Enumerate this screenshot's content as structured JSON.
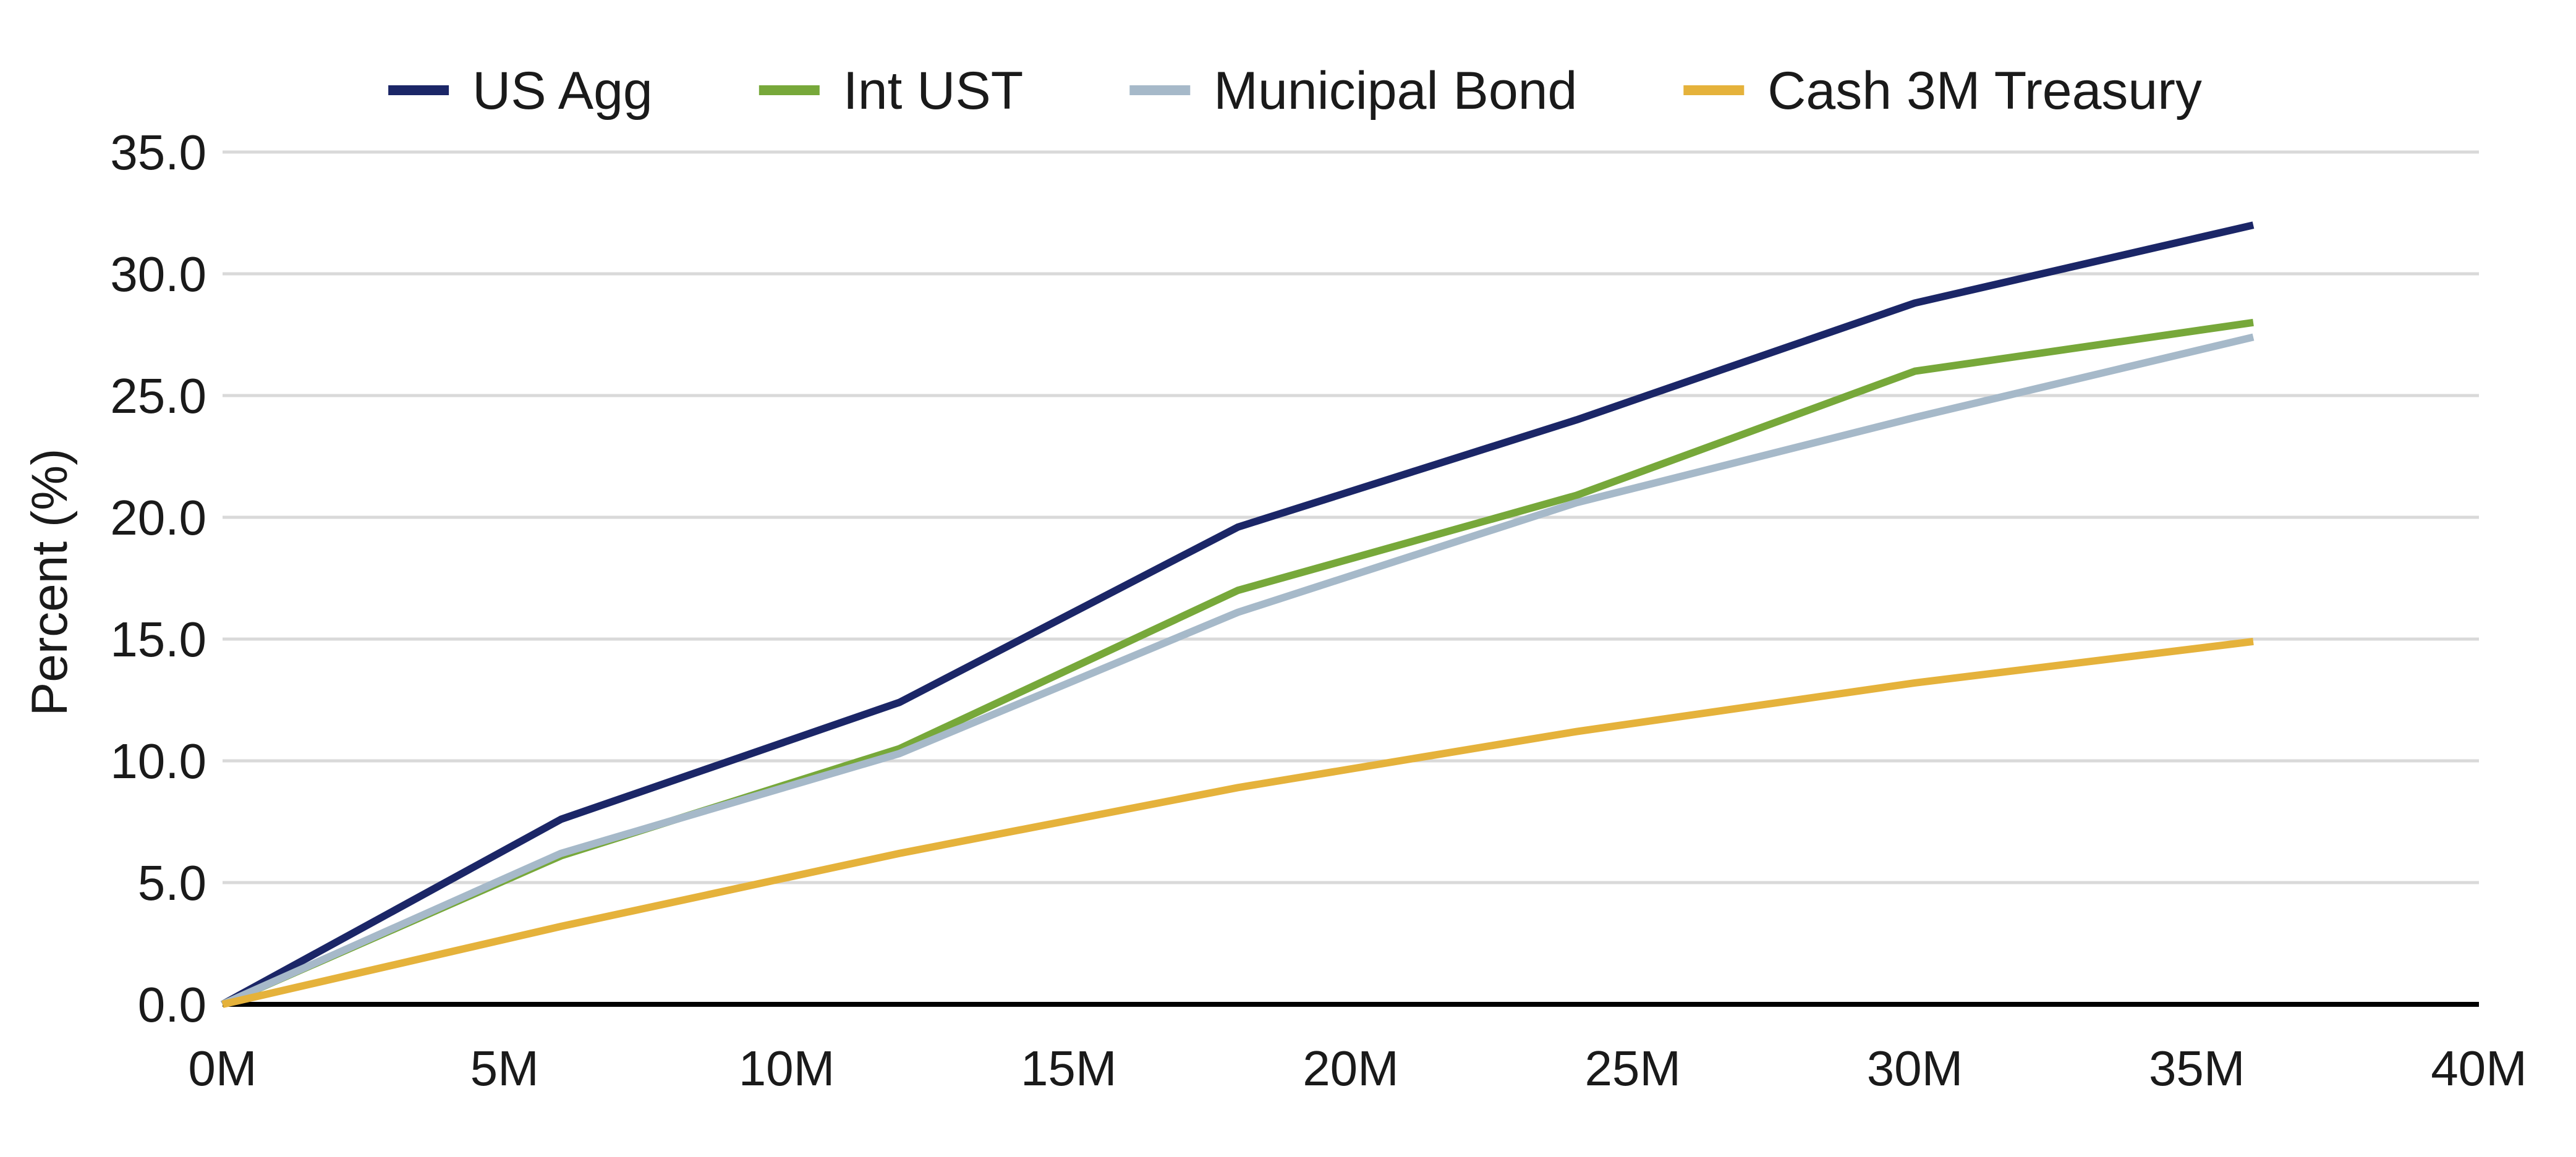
{
  "chart_data": {
    "type": "line",
    "ylabel": "Percent (%)",
    "xlabel": "",
    "xlim": [
      0,
      40
    ],
    "ylim": [
      0,
      35
    ],
    "x_ticks": [
      0,
      5,
      10,
      15,
      20,
      25,
      30,
      35,
      40
    ],
    "x_tick_labels": [
      "0M",
      "5M",
      "10M",
      "15M",
      "20M",
      "25M",
      "30M",
      "35M",
      "40M"
    ],
    "y_ticks": [
      0,
      5,
      10,
      15,
      20,
      25,
      30,
      35
    ],
    "y_tick_labels": [
      "0.0",
      "5.0",
      "10.0",
      "15.0",
      "20.0",
      "25.0",
      "30.0",
      "35.0"
    ],
    "grid": "horizontal",
    "legend_position": "top",
    "x": [
      0,
      6,
      12,
      18,
      24,
      30,
      36
    ],
    "series": [
      {
        "name": "US Agg",
        "color": "#1b2667",
        "values": [
          0,
          7.6,
          12.4,
          19.6,
          24.0,
          28.8,
          32.0
        ]
      },
      {
        "name": "Int UST",
        "color": "#77a83a",
        "values": [
          0,
          6.1,
          10.5,
          17.0,
          20.9,
          26.0,
          28.0
        ]
      },
      {
        "name": "Municipal Bond",
        "color": "#a6b9c9",
        "values": [
          0,
          6.2,
          10.3,
          16.1,
          20.6,
          24.1,
          27.4
        ]
      },
      {
        "name": "Cash 3M Treasury",
        "color": "#e5b23b",
        "values": [
          0,
          3.2,
          6.2,
          8.9,
          11.2,
          13.2,
          14.9
        ]
      }
    ],
    "grid_color": "#d9d9d9",
    "axis_color": "#000000"
  }
}
